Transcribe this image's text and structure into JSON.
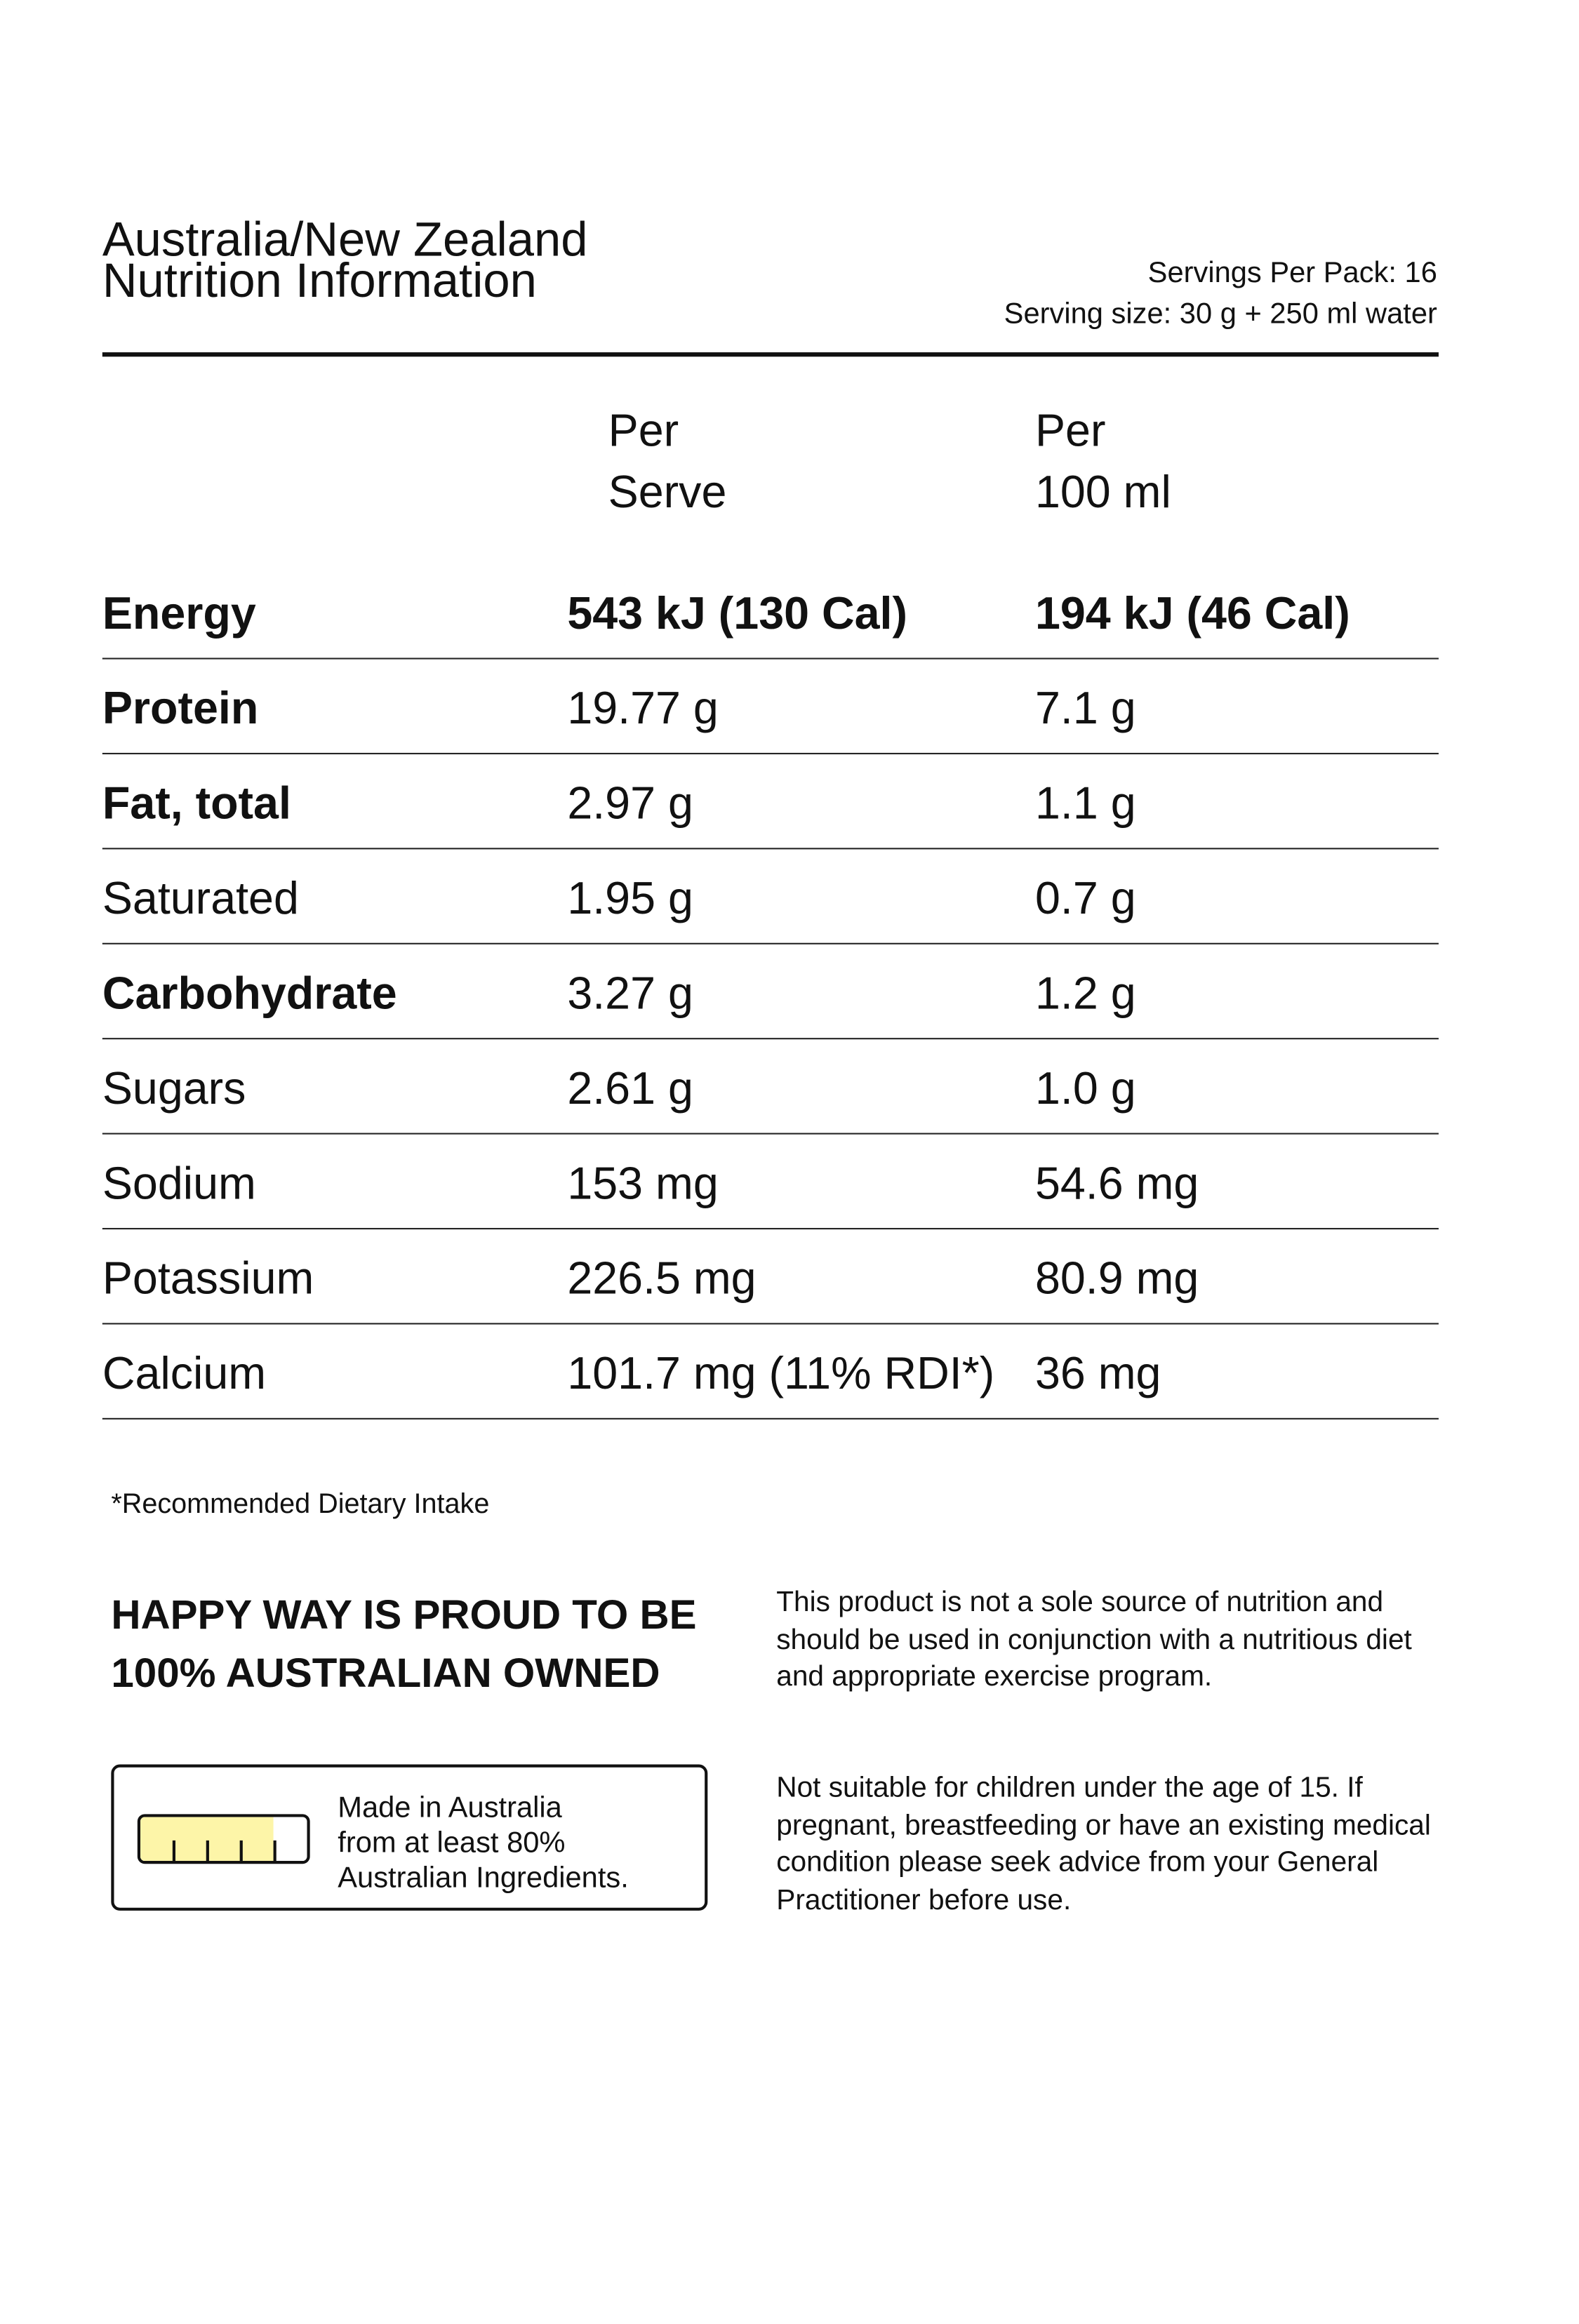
{
  "header": {
    "title_line1": "Australia/New Zealand",
    "title_line2": "Nutrition Information",
    "servings_per_pack": "Servings Per Pack: 16",
    "serving_size": "Serving size: 30 g + 250 ml water"
  },
  "columns": {
    "per_serve": [
      "Per",
      "Serve"
    ],
    "per_100ml": [
      "Per",
      "100 ml"
    ]
  },
  "rows": [
    {
      "name": "Energy",
      "per_serve": "543 kJ (130 Cal)",
      "per_100ml": "194 kJ (46 Cal)",
      "bold": true
    },
    {
      "name": "Protein",
      "per_serve": "19.77 g",
      "per_100ml": "7.1 g",
      "bold": true
    },
    {
      "name": "Fat, total",
      "per_serve": "2.97 g",
      "per_100ml": "1.1 g",
      "bold": true
    },
    {
      "name": "Saturated",
      "per_serve": "1.95 g",
      "per_100ml": "0.7 g",
      "bold": false
    },
    {
      "name": "Carbohydrate",
      "per_serve": "3.27 g",
      "per_100ml": "1.2 g",
      "bold": true
    },
    {
      "name": "Sugars",
      "per_serve": "2.61 g",
      "per_100ml": "1.0 g",
      "bold": false
    },
    {
      "name": "Sodium",
      "per_serve": "153 mg",
      "per_100ml": "54.6 mg",
      "bold": false
    },
    {
      "name": "Potassium",
      "per_serve": "226.5 mg",
      "per_100ml": "80.9 mg",
      "bold": false
    },
    {
      "name": "Calcium",
      "per_serve": "101.7 mg (11% RDI*)",
      "per_100ml": "36 mg",
      "bold": false
    }
  ],
  "footnote": "*Recommended Dietary Intake",
  "proud": [
    "HAPPY WAY IS PROUD TO BE",
    "100% AUSTRALIAN OWNED"
  ],
  "disclaimer1": "This product is not a sole source of nutrition and should be used in conjunction with a nutritious diet and appropriate exercise program.",
  "disclaimer2": "Not suitable for children under the age of 15. If pregnant, breastfeeding or have an existing medical condition please seek advice from your General Practitioner before use.",
  "made_in": {
    "lines": [
      "Made in Australia",
      "from at least 80%",
      "Australian Ingredients."
    ],
    "percent_australian": 80,
    "fill_color": "#fdf5a8"
  }
}
